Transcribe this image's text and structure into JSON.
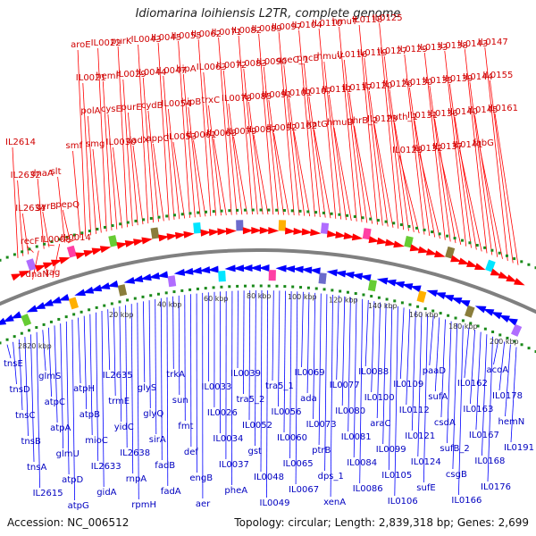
{
  "title": "Idiomarina loihiensis L2TR, complete genome",
  "accession": "Accession: NC_006512",
  "topology": "Topology: circular; Length: 2,839,318 bp; Genes: 2,699",
  "colors": {
    "forward": "#ff0000",
    "reverse": "#0000ff",
    "backbone": "#808080",
    "tick": "#1a8a1a"
  },
  "scale_labels": [
    "2820 kbp",
    "20 kbp",
    "40 kbp",
    "60 kbp",
    "80 kbp",
    "100 kbp",
    "120 kbp",
    "140 kbp",
    "160 kbp",
    "180 kbp",
    "200 kbp"
  ],
  "top_labels": [
    "IL2614",
    "IL2632",
    "IL2634",
    "recF",
    "dnaN",
    "dnaA",
    "gyrB",
    "IL0008",
    "tag",
    "slt",
    "pepQ",
    "IL0014",
    "smf",
    "aroE",
    "IL0021",
    "polA",
    "smg",
    "IL0022",
    "hemF",
    "cysE",
    "IL0030",
    "purK",
    "IL0029",
    "purE",
    "dadX",
    "IL0043",
    "IL0044",
    "cydB",
    "appC",
    "IL0045",
    "IL0047",
    "IL0054",
    "IL0053",
    "IL0055",
    "hipA",
    "hipB",
    "IL0061",
    "IL0062",
    "IL0063",
    "trxC",
    "IL0068",
    "IL0071",
    "IL0072",
    "IL0078",
    "IL0079",
    "IL0082",
    "IL0083",
    "IL0085",
    "IL0087",
    "IL0089",
    "IL0090",
    "IL0091",
    "IL0092",
    "IL0097",
    "qseC_1",
    "IL0101",
    "IL0102",
    "IL0104",
    "pncB",
    "IL0107",
    "katG",
    "IL0110",
    "hmuV",
    "IL0111",
    "hmuU",
    "hmuT",
    "IL0116",
    "IL0117",
    "phrB_2",
    "IL0118",
    "IL0119",
    "IL0120",
    "IL0123",
    "IL0125",
    "IL0127",
    "IL0126",
    "nuth_1",
    "IL0128",
    "IL0129",
    "IL0130",
    "IL0131",
    "IL0132",
    "IL0133",
    "IL0135",
    "IL0136",
    "IL0137",
    "IL0138",
    "IL0139",
    "IL0140",
    "IL0141",
    "IL0143",
    "IL0144",
    "IL0145",
    "fabG",
    "IL0147",
    "IL0155",
    "IL0161"
  ],
  "bottom_labels": [
    "tnsE",
    "tnsD",
    "tnsC",
    "tnsB",
    "tnsA",
    "IL2615",
    "glmS",
    "atpC",
    "atpA",
    "glmU",
    "atpD",
    "atpG",
    "atpH",
    "atpB",
    "mioC",
    "IL2633",
    "gidA",
    "IL2635",
    "trmE",
    "yidC",
    "IL2638",
    "rnpA",
    "rpmH",
    "glyS",
    "glyQ",
    "sirA",
    "fadB",
    "fadA",
    "trkA",
    "sun",
    "fmt",
    "def",
    "engB",
    "aer",
    "IL0033",
    "IL0026",
    "IL0034",
    "IL0037",
    "pheA",
    "IL0039",
    "tra5_2",
    "IL0052",
    "gst",
    "IL0048",
    "IL0049",
    "tra5_1",
    "IL0056",
    "IL0060",
    "IL0065",
    "IL0067",
    "IL0069",
    "ada",
    "IL0073",
    "ptrB",
    "dps_1",
    "xenA",
    "IL0077",
    "IL0080",
    "IL0081",
    "IL0084",
    "IL0086",
    "IL0088",
    "IL0100",
    "araC",
    "IL0099",
    "IL0105",
    "IL0106",
    "IL0109",
    "IL0112",
    "IL0121",
    "IL0124",
    "sufE",
    "paaD",
    "sufA",
    "csdA",
    "sufB_2",
    "csgB",
    "IL0166",
    "IL0162",
    "IL0163",
    "IL0167",
    "IL0168",
    "IL0176",
    "acoA",
    "IL0178",
    "hemN",
    "IL0191"
  ]
}
